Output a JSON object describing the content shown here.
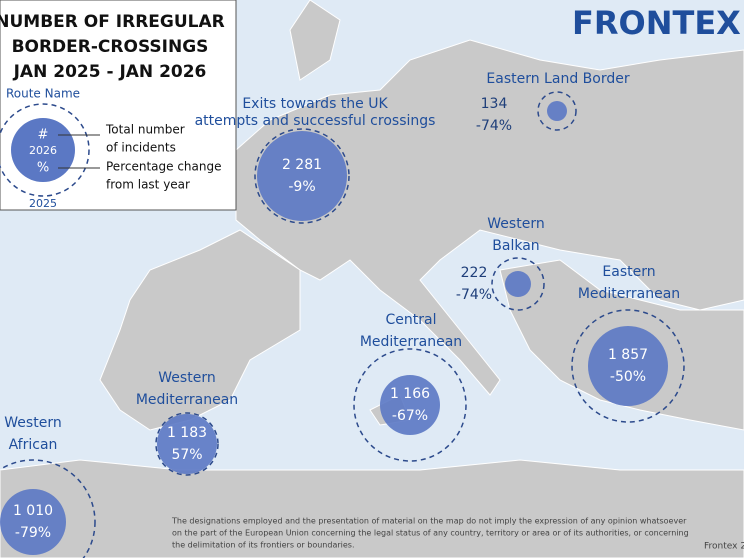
{
  "legend": {
    "title": [
      "NUMBER OF IRREGULAR",
      "BORDER-CROSSINGS",
      "JAN 2025 - JAN 2026"
    ],
    "route_name": "Route Name",
    "symbol_count": "#",
    "symbol_year": "2026",
    "symbol_percent": "%",
    "symbol_prev_year": "2025",
    "count_label": [
      "Total number",
      "of incidents"
    ],
    "change_label": [
      "Percentage change",
      "from last year"
    ]
  },
  "logo": "FRONTEX",
  "routes": [
    {
      "name": [
        "Exits towards the UK"
      ],
      "subtitle": "attempts and successful crossings",
      "incidents": "2 281",
      "change": "-9%"
    },
    {
      "name": [
        "Eastern Land Border"
      ],
      "incidents": "134",
      "change": "-74%"
    },
    {
      "name": [
        "Western",
        "Balkan"
      ],
      "incidents": "222",
      "change": "-74%"
    },
    {
      "name": [
        "Eastern",
        "Mediterranean"
      ],
      "incidents": "1 857",
      "change": "-50%"
    },
    {
      "name": [
        "Central",
        "Mediterranean"
      ],
      "incidents": "1 166",
      "change": "-67%"
    },
    {
      "name": [
        "Western",
        "Mediterranean"
      ],
      "incidents": "1 183",
      "change": "57%"
    },
    {
      "name": [
        "Western",
        "African"
      ],
      "incidents": "1 010",
      "change": "-79%"
    }
  ],
  "disclaimer": [
    "The designations employed and the presentation of material on the map do not imply the expression of any opinion whatsoever",
    "on the part of the European Union concerning the legal status of any country, territory or area or of its authorities, or concerning",
    "the delimitation of its frontiers or boundaries."
  ],
  "credit": "Frontex 2"
}
